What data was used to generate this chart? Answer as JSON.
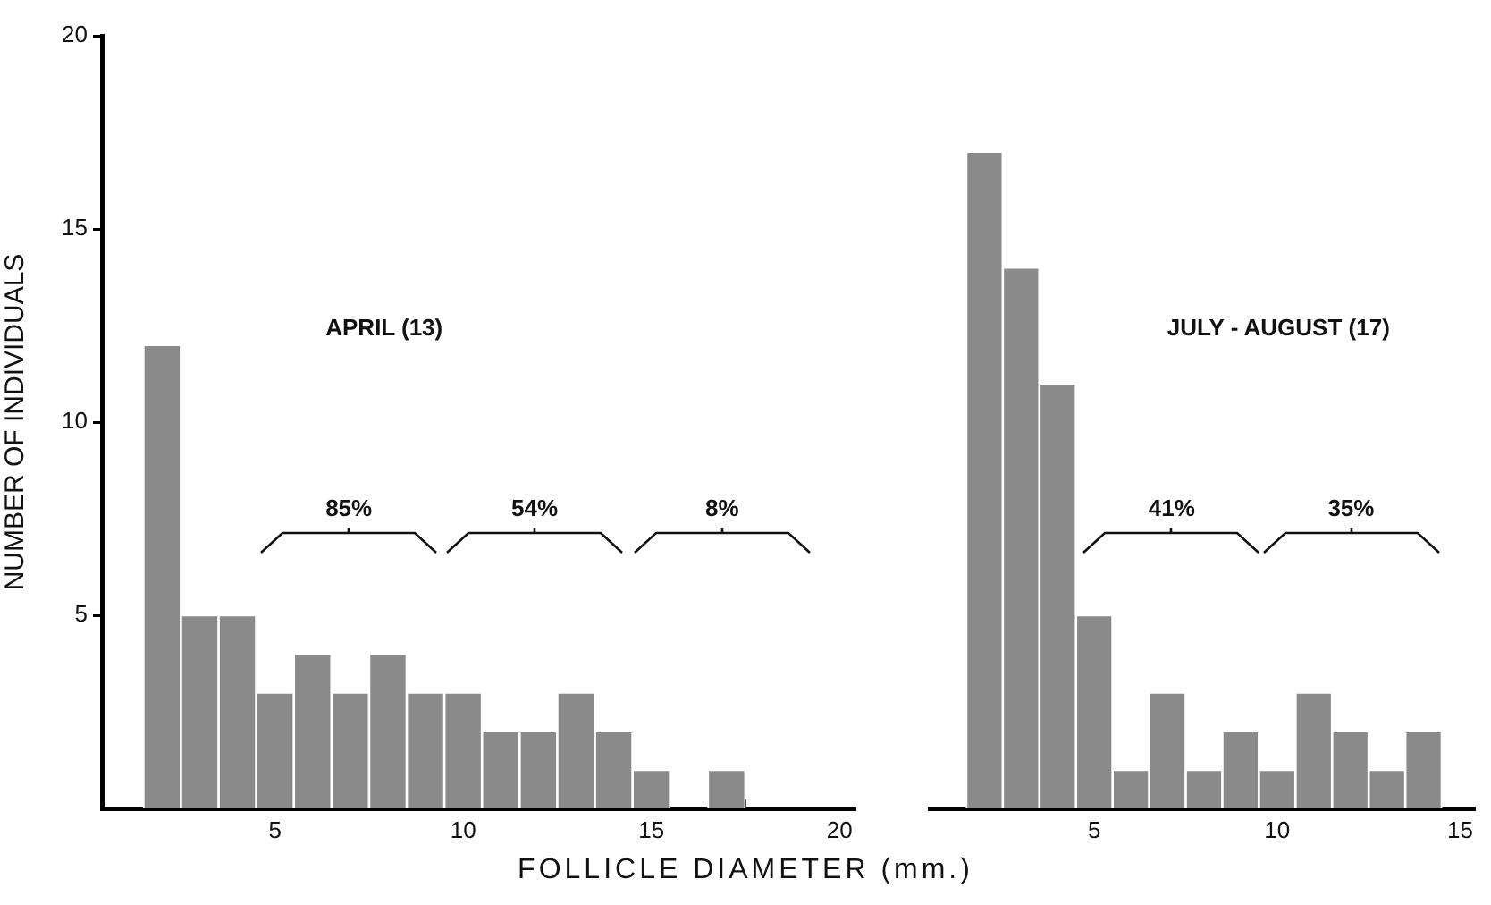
{
  "chart_data": [
    {
      "type": "histogram",
      "title": "APRIL (13)",
      "xlabel": "FOLLICLE DIAMETER (mm.)",
      "ylabel": "NUMBER OF INDIVIDUALS",
      "bins": [
        1.5,
        2.5,
        3.5,
        4.5,
        5.5,
        6.5,
        7.5,
        8.5,
        9.5,
        10.5,
        11.5,
        12.5,
        13.5,
        14.5,
        15.5,
        16.5,
        17.5
      ],
      "values": [
        12,
        5,
        5,
        3,
        4,
        3,
        4,
        3,
        3,
        2,
        2,
        3,
        2,
        1,
        0,
        1
      ],
      "color": "#8a8a8a",
      "xlim": [
        0.4,
        20.4
      ],
      "xticks": [
        5,
        10,
        15,
        20
      ],
      "ylim": [
        0,
        20
      ],
      "yticks": [
        5,
        10,
        15,
        20
      ],
      "grid": false,
      "annotations": [
        "85%",
        "54%",
        "8%"
      ]
    },
    {
      "type": "histogram",
      "title": "JULY - AUGUST (17)",
      "bins": [
        1.5,
        2.5,
        3.5,
        4.5,
        5.5,
        6.5,
        7.5,
        8.5,
        9.5,
        10.5,
        11.5,
        12.5,
        13.5,
        14.5
      ],
      "values": [
        17,
        14,
        11,
        5,
        1,
        3,
        1,
        2,
        1,
        3,
        2,
        1,
        2
      ],
      "color": "#8a8a8a",
      "xlim": [
        0.5,
        15.4
      ],
      "xticks": [
        5,
        10,
        15
      ],
      "ylim": [
        0,
        20
      ],
      "tick_labels": "x",
      "grid": false,
      "annotations": [
        "41%",
        "35%"
      ]
    }
  ]
}
